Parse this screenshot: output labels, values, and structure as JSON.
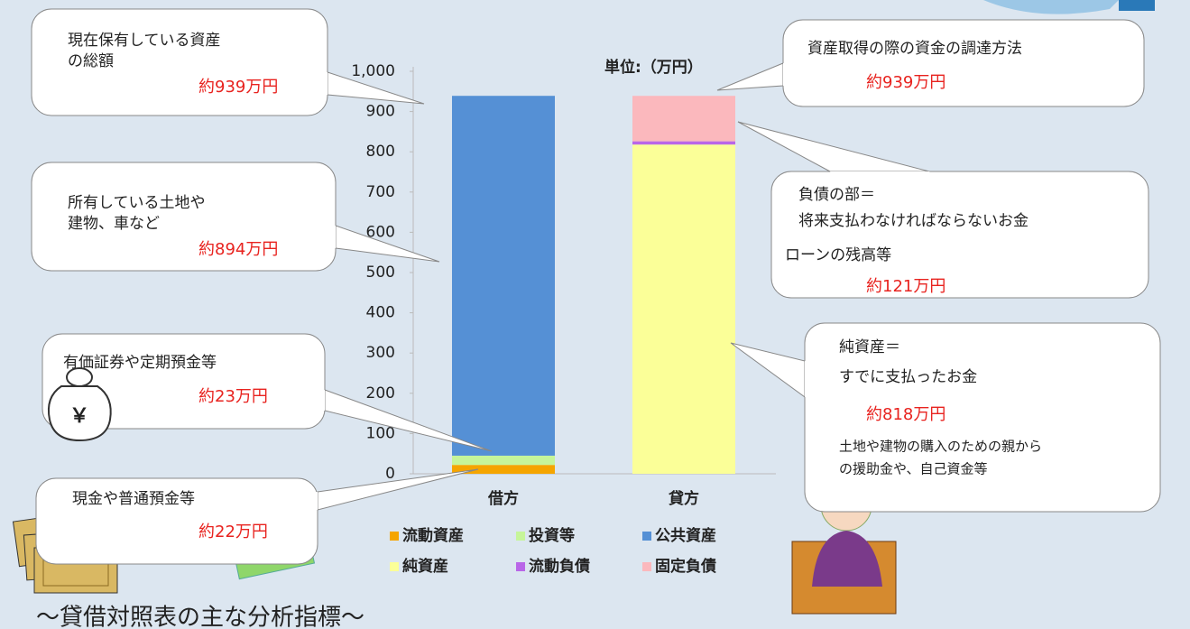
{
  "chart_data": {
    "type": "bar",
    "stacked": true,
    "unit_label": "単位:（万円）",
    "footer_title": "～貸借対照表の主な分析指標～",
    "bag_symbol": "￥",
    "categories": [
      "借方",
      "貸方"
    ],
    "series": [
      {
        "name": "流動資産",
        "color": "#f5a500",
        "values": [
          22,
          null
        ]
      },
      {
        "name": "投資等",
        "color": "#c6f59a",
        "values": [
          23,
          null
        ]
      },
      {
        "name": "公共資産",
        "color": "#5590d5",
        "values": [
          894,
          null
        ]
      },
      {
        "name": "純資産",
        "color": "#fbff98",
        "values": [
          null,
          818
        ]
      },
      {
        "name": "流動負債",
        "color": "#b966e8",
        "values": [
          null,
          8
        ]
      },
      {
        "name": "固定負債",
        "color": "#fbb8bd",
        "values": [
          null,
          113
        ]
      }
    ],
    "ylim": [
      0,
      1000
    ],
    "yticks": [
      0,
      100,
      200,
      300,
      400,
      500,
      600,
      700,
      800,
      900,
      {
        "value": 1000,
        "label": "1,000"
      }
    ],
    "grid": false,
    "annotations": [
      {
        "lines": [
          "現在保有している資産",
          "の総額"
        ],
        "amount": "約939万円"
      },
      {
        "lines": [
          "所有している土地や",
          "建物、車など"
        ],
        "amount": "約894万円"
      },
      {
        "lines": [
          "有価証券や定期預金等"
        ],
        "amount": "約23万円"
      },
      {
        "lines": [
          "現金や普通預金等"
        ],
        "amount": "約22万円"
      },
      {
        "lines": [
          "資産取得の際の資金の調達方法"
        ],
        "amount": "約939万円"
      },
      {
        "lines": [
          "負債の部＝",
          "将来支払わなければならないお金",
          "ローンの残高等"
        ],
        "amount": "約121万円"
      },
      {
        "lines": [
          "純資産＝",
          "すでに支払ったお金"
        ],
        "amount": "約818万円",
        "notes": [
          "土地や建物の購入のための親から",
          "の援助金や、自己資金等"
        ]
      }
    ]
  }
}
